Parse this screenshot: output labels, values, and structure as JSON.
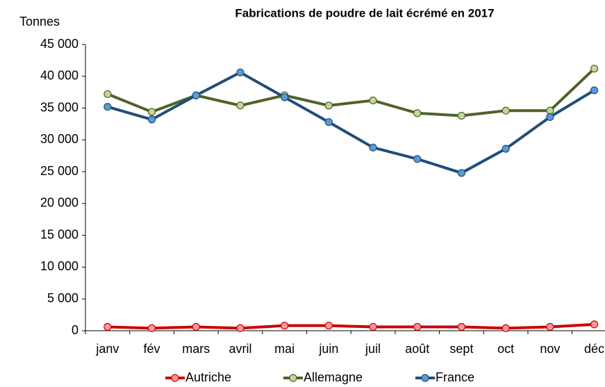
{
  "chart_data": {
    "type": "line",
    "title": "Fabrications de poudre de lait écrémé en 2017",
    "y_axis_label": "Tonnes",
    "categories": [
      "janv",
      "fév",
      "mars",
      "avril",
      "mai",
      "juin",
      "juil",
      "août",
      "sept",
      "oct",
      "nov",
      "déc"
    ],
    "series": [
      {
        "name": "Autriche",
        "color": "#cc0000",
        "marker_color": "#ff9999",
        "values": [
          600,
          400,
          600,
          400,
          800,
          800,
          600,
          600,
          600,
          400,
          600,
          1000
        ]
      },
      {
        "name": "Allemagne",
        "color": "#4f6228",
        "marker_color": "#c3d69b",
        "values": [
          37200,
          34400,
          37000,
          35400,
          37000,
          35400,
          36200,
          34200,
          33800,
          34600,
          34600,
          41200
        ]
      },
      {
        "name": "France",
        "color": "#1f4e79",
        "marker_color": "#5b9bd5",
        "values": [
          35200,
          33200,
          37000,
          40600,
          36700,
          32800,
          28800,
          27000,
          24800,
          28600,
          33600,
          37800
        ]
      }
    ],
    "ylim": [
      0,
      45000
    ],
    "yticks": [
      0,
      {
        "value": 5000,
        "label": "5 000"
      },
      {
        "value": 10000,
        "label": "10 000"
      },
      {
        "value": 15000,
        "label": "15 000"
      },
      {
        "value": 20000,
        "label": "20 000"
      },
      {
        "value": 25000,
        "label": "25 000"
      },
      {
        "value": 30000,
        "label": "30 000"
      },
      {
        "value": 35000,
        "label": "35 000"
      },
      {
        "value": 40000,
        "label": "40 000"
      },
      {
        "value": 45000,
        "label": "45 000"
      }
    ],
    "grid": false,
    "legend": "bottom"
  }
}
